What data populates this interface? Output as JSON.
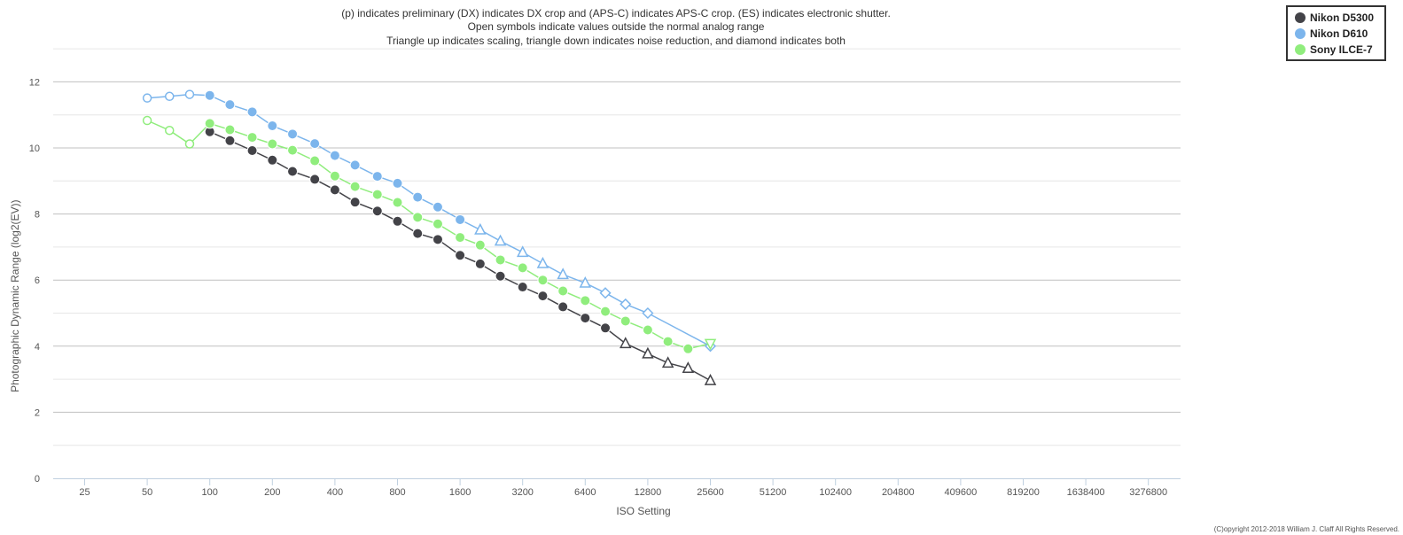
{
  "notes": [
    "(p) indicates preliminary (DX) indicates DX crop and (APS-C) indicates APS-C crop. (ES) indicates electronic shutter.",
    "Open symbols indicate values outside the normal analog range",
    "Triangle up indicates scaling, triangle down indicates noise reduction, and diamond indicates both"
  ],
  "copyright": "(C)opyright 2012-2018 William J. Claff All Rights Reserved.",
  "chart_data": {
    "type": "line",
    "xlabel": "ISO Setting",
    "ylabel": "Photographic Dynamic Range (log2(EV))",
    "x_scale": "log2",
    "x_ticks": [
      "25",
      "50",
      "100",
      "200",
      "400",
      "800",
      "1600",
      "3200",
      "6400",
      "12800",
      "25600",
      "51200",
      "102400",
      "204800",
      "409600",
      "819200",
      "1638400",
      "3276800"
    ],
    "y_ticks": [
      "0",
      "2",
      "4",
      "6",
      "8",
      "10",
      "12"
    ],
    "ylim": [
      0,
      12.8
    ],
    "grid": true,
    "legend_position": "top-right",
    "series": [
      {
        "name": "Nikon D5300",
        "color": "#434348",
        "points": [
          {
            "x": 100,
            "y": 10.49,
            "m": "circle"
          },
          {
            "x": 125,
            "y": 10.22,
            "m": "circle"
          },
          {
            "x": 160,
            "y": 9.92,
            "m": "circle"
          },
          {
            "x": 200,
            "y": 9.63,
            "m": "circle"
          },
          {
            "x": 250,
            "y": 9.29,
            "m": "circle"
          },
          {
            "x": 320,
            "y": 9.05,
            "m": "circle"
          },
          {
            "x": 400,
            "y": 8.73,
            "m": "circle"
          },
          {
            "x": 500,
            "y": 8.36,
            "m": "circle"
          },
          {
            "x": 640,
            "y": 8.09,
            "m": "circle"
          },
          {
            "x": 800,
            "y": 7.78,
            "m": "circle"
          },
          {
            "x": 1000,
            "y": 7.41,
            "m": "circle"
          },
          {
            "x": 1250,
            "y": 7.23,
            "m": "circle"
          },
          {
            "x": 1600,
            "y": 6.75,
            "m": "circle"
          },
          {
            "x": 2000,
            "y": 6.49,
            "m": "circle"
          },
          {
            "x": 2500,
            "y": 6.12,
            "m": "circle"
          },
          {
            "x": 3200,
            "y": 5.79,
            "m": "circle"
          },
          {
            "x": 4000,
            "y": 5.52,
            "m": "circle"
          },
          {
            "x": 5000,
            "y": 5.19,
            "m": "circle"
          },
          {
            "x": 6400,
            "y": 4.85,
            "m": "circle"
          },
          {
            "x": 8000,
            "y": 4.55,
            "m": "circle"
          },
          {
            "x": 10000,
            "y": 4.08,
            "m": "triangle-up"
          },
          {
            "x": 12800,
            "y": 3.77,
            "m": "triangle-up"
          },
          {
            "x": 16000,
            "y": 3.49,
            "m": "triangle-up"
          },
          {
            "x": 20000,
            "y": 3.33,
            "m": "triangle-up"
          },
          {
            "x": 25600,
            "y": 2.96,
            "m": "triangle-up"
          }
        ]
      },
      {
        "name": "Nikon D610",
        "color": "#7cb5ec",
        "points": [
          {
            "x": 50,
            "y": 11.51,
            "m": "open-circle"
          },
          {
            "x": 64,
            "y": 11.56,
            "m": "open-circle"
          },
          {
            "x": 80,
            "y": 11.62,
            "m": "open-circle"
          },
          {
            "x": 100,
            "y": 11.59,
            "m": "circle"
          },
          {
            "x": 125,
            "y": 11.31,
            "m": "circle"
          },
          {
            "x": 160,
            "y": 11.09,
            "m": "circle"
          },
          {
            "x": 200,
            "y": 10.67,
            "m": "circle"
          },
          {
            "x": 250,
            "y": 10.42,
            "m": "circle"
          },
          {
            "x": 320,
            "y": 10.13,
            "m": "circle"
          },
          {
            "x": 400,
            "y": 9.77,
            "m": "circle"
          },
          {
            "x": 500,
            "y": 9.48,
            "m": "circle"
          },
          {
            "x": 640,
            "y": 9.14,
            "m": "circle"
          },
          {
            "x": 800,
            "y": 8.93,
            "m": "circle"
          },
          {
            "x": 1000,
            "y": 8.51,
            "m": "circle"
          },
          {
            "x": 1250,
            "y": 8.21,
            "m": "circle"
          },
          {
            "x": 1600,
            "y": 7.83,
            "m": "circle"
          },
          {
            "x": 2000,
            "y": 7.52,
            "m": "triangle-up"
          },
          {
            "x": 2500,
            "y": 7.18,
            "m": "triangle-up"
          },
          {
            "x": 3200,
            "y": 6.84,
            "m": "triangle-up"
          },
          {
            "x": 4000,
            "y": 6.5,
            "m": "triangle-up"
          },
          {
            "x": 5000,
            "y": 6.17,
            "m": "triangle-up"
          },
          {
            "x": 6400,
            "y": 5.91,
            "m": "triangle-up"
          },
          {
            "x": 8000,
            "y": 5.61,
            "m": "diamond"
          },
          {
            "x": 10000,
            "y": 5.27,
            "m": "diamond"
          },
          {
            "x": 12800,
            "y": 5.0,
            "m": "diamond"
          },
          {
            "x": 25600,
            "y": 4.0,
            "m": "diamond"
          }
        ]
      },
      {
        "name": "Sony ILCE-7",
        "color": "#90ed7d",
        "points": [
          {
            "x": 50,
            "y": 10.83,
            "m": "open-circle"
          },
          {
            "x": 64,
            "y": 10.53,
            "m": "open-circle"
          },
          {
            "x": 80,
            "y": 10.12,
            "m": "open-circle"
          },
          {
            "x": 100,
            "y": 10.74,
            "m": "circle"
          },
          {
            "x": 125,
            "y": 10.55,
            "m": "circle"
          },
          {
            "x": 160,
            "y": 10.32,
            "m": "circle"
          },
          {
            "x": 200,
            "y": 10.12,
            "m": "circle"
          },
          {
            "x": 250,
            "y": 9.93,
            "m": "circle"
          },
          {
            "x": 320,
            "y": 9.61,
            "m": "circle"
          },
          {
            "x": 400,
            "y": 9.15,
            "m": "circle"
          },
          {
            "x": 500,
            "y": 8.83,
            "m": "circle"
          },
          {
            "x": 640,
            "y": 8.59,
            "m": "circle"
          },
          {
            "x": 800,
            "y": 8.35,
            "m": "circle"
          },
          {
            "x": 1000,
            "y": 7.9,
            "m": "circle"
          },
          {
            "x": 1250,
            "y": 7.7,
            "m": "circle"
          },
          {
            "x": 1600,
            "y": 7.29,
            "m": "circle"
          },
          {
            "x": 2000,
            "y": 7.06,
            "m": "circle"
          },
          {
            "x": 2500,
            "y": 6.61,
            "m": "circle"
          },
          {
            "x": 3200,
            "y": 6.37,
            "m": "circle"
          },
          {
            "x": 4000,
            "y": 6.0,
            "m": "circle"
          },
          {
            "x": 5000,
            "y": 5.67,
            "m": "circle"
          },
          {
            "x": 6400,
            "y": 5.38,
            "m": "circle"
          },
          {
            "x": 8000,
            "y": 5.05,
            "m": "circle"
          },
          {
            "x": 10000,
            "y": 4.76,
            "m": "circle"
          },
          {
            "x": 12800,
            "y": 4.49,
            "m": "circle"
          },
          {
            "x": 16000,
            "y": 4.14,
            "m": "circle"
          },
          {
            "x": 20000,
            "y": 3.92,
            "m": "circle"
          },
          {
            "x": 25600,
            "y": 4.08,
            "m": "triangle-down"
          }
        ]
      }
    ]
  }
}
